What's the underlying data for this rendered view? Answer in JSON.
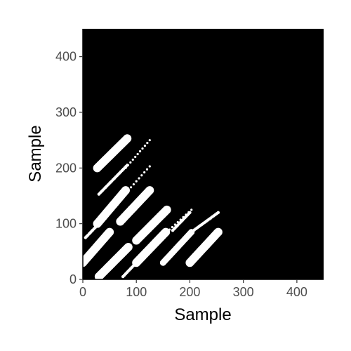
{
  "chart_data": {
    "type": "scatter",
    "title": "",
    "xlabel": "Sample",
    "ylabel": "Sample",
    "xlim": [
      0,
      450
    ],
    "ylim": [
      0,
      450
    ],
    "x_ticks": [
      0,
      100,
      200,
      300,
      400
    ],
    "y_ticks": [
      0,
      100,
      200,
      300,
      400
    ],
    "x_tick_labels": [
      "0",
      "100",
      "200",
      "300",
      "400"
    ],
    "y_tick_labels": [
      "0",
      "100",
      "200",
      "300",
      "400"
    ],
    "grid": false,
    "legend": "none",
    "colors": {
      "panel": "#000000",
      "points": "#ffffff",
      "axis_text": "#4d4d4d",
      "axis_title": "#000000"
    },
    "series": [
      {
        "style": "thick",
        "segments": [
          {
            "x": [
              27,
              83
            ],
            "y": [
              200,
              253
            ]
          },
          {
            "x": [
              27,
              80
            ],
            "y": [
              100,
              160
            ]
          },
          {
            "x": [
              70,
              125
            ],
            "y": [
              104,
              160
            ]
          },
          {
            "x": [
              0,
              50
            ],
            "y": [
              30,
              85
            ]
          },
          {
            "x": [
              30,
              85
            ],
            "y": [
              5,
              58
            ]
          },
          {
            "x": [
              100,
              157
            ],
            "y": [
              70,
              125
            ]
          },
          {
            "x": [
              100,
              155
            ],
            "y": [
              30,
              85
            ]
          },
          {
            "x": [
              200,
              253
            ],
            "y": [
              30,
              85
            ]
          }
        ]
      },
      {
        "style": "medium",
        "segments": [
          {
            "x": [
              150,
              203
            ],
            "y": [
              30,
              85
            ]
          }
        ]
      },
      {
        "style": "thin",
        "segments": [
          {
            "x": [
              30,
              83
            ],
            "y": [
              153,
              205
            ]
          },
          {
            "x": [
              5,
              30
            ],
            "y": [
              75,
              100
            ]
          },
          {
            "x": [
              75,
              125
            ],
            "y": [
              5,
              55
            ]
          },
          {
            "x": [
              168,
              200
            ],
            "y": [
              88,
              120
            ]
          },
          {
            "x": [
              200,
              253
            ],
            "y": [
              83,
              120
            ]
          }
        ]
      },
      {
        "style": "sparse",
        "segments": [
          {
            "x": [
              80,
              125
            ],
            "y": [
              200,
              250
            ]
          },
          {
            "x": [
              85,
              125
            ],
            "y": [
              160,
              203
            ]
          },
          {
            "x": [
              157,
              203
            ],
            "y": [
              85,
              125
            ]
          }
        ]
      }
    ]
  }
}
